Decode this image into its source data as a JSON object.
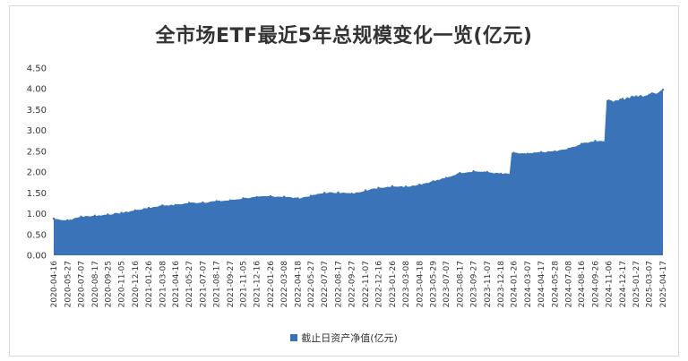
{
  "chart_data": {
    "type": "area",
    "title": "全市场ETF最近5年总规模变化一览(亿元)",
    "xlabel": "",
    "ylabel": "",
    "ylim": [
      0,
      4.5
    ],
    "yticks": [
      "0.00",
      "0.50",
      "1.00",
      "1.50",
      "2.00",
      "2.50",
      "3.00",
      "3.50",
      "4.00",
      "4.50"
    ],
    "xticks": [
      "2020-04-16",
      "2020-05-27",
      "2020-07-07",
      "2020-08-17",
      "2020-09-25",
      "2020-11-05",
      "2020-12-16",
      "2021-01-26",
      "2021-03-08",
      "2021-04-16",
      "2021-05-27",
      "2021-07-07",
      "2021-08-17",
      "2021-09-27",
      "2021-11-05",
      "2021-12-16",
      "2022-01-26",
      "2022-03-08",
      "2022-04-18",
      "2022-05-27",
      "2022-07-07",
      "2022-08-17",
      "2022-09-27",
      "2022-11-07",
      "2022-12-16",
      "2023-01-26",
      "2023-03-08",
      "2023-04-18",
      "2023-05-29",
      "2023-07-07",
      "2023-08-17",
      "2023-09-27",
      "2023-11-07",
      "2023-12-18",
      "2024-01-26",
      "2024-03-07",
      "2024-04-17",
      "2024-05-28",
      "2024-07-08",
      "2024-08-16",
      "2024-09-26",
      "2024-11-06",
      "2024-12-17",
      "2025-01-27",
      "2025-03-07",
      "2025-04-17"
    ],
    "grid": false,
    "legend_position": "bottom",
    "series": [
      {
        "name": "截止日资产净值(亿元)",
        "color": "#3a73b8",
        "x": [
          "2020-04-16",
          "2020-05-27",
          "2020-07-07",
          "2020-08-17",
          "2020-09-25",
          "2020-11-05",
          "2020-12-16",
          "2021-01-26",
          "2021-03-08",
          "2021-04-16",
          "2021-05-27",
          "2021-07-07",
          "2021-08-17",
          "2021-09-27",
          "2021-11-05",
          "2021-12-16",
          "2022-01-26",
          "2022-03-08",
          "2022-04-18",
          "2022-05-27",
          "2022-07-07",
          "2022-08-17",
          "2022-09-27",
          "2022-11-07",
          "2022-12-16",
          "2023-01-26",
          "2023-03-08",
          "2023-04-18",
          "2023-05-29",
          "2023-07-07",
          "2023-08-17",
          "2023-09-27",
          "2023-11-07",
          "2023-12-18",
          "2024-01-26",
          "2024-03-07",
          "2024-04-17",
          "2024-05-28",
          "2024-07-08",
          "2024-08-16",
          "2024-09-26",
          "2024-11-06",
          "2024-12-17",
          "2025-01-27",
          "2025-03-07",
          "2025-04-17"
        ],
        "values": [
          0.88,
          0.84,
          0.93,
          0.95,
          0.98,
          1.02,
          1.08,
          1.14,
          1.2,
          1.21,
          1.26,
          1.27,
          1.3,
          1.32,
          1.37,
          1.4,
          1.42,
          1.41,
          1.37,
          1.43,
          1.5,
          1.51,
          1.48,
          1.56,
          1.62,
          1.66,
          1.65,
          1.7,
          1.78,
          1.86,
          1.98,
          2.02,
          2.0,
          1.96,
          2.46,
          2.44,
          2.48,
          2.5,
          2.56,
          2.68,
          2.75,
          3.72,
          3.76,
          3.82,
          3.86,
          3.98
        ]
      }
    ]
  }
}
